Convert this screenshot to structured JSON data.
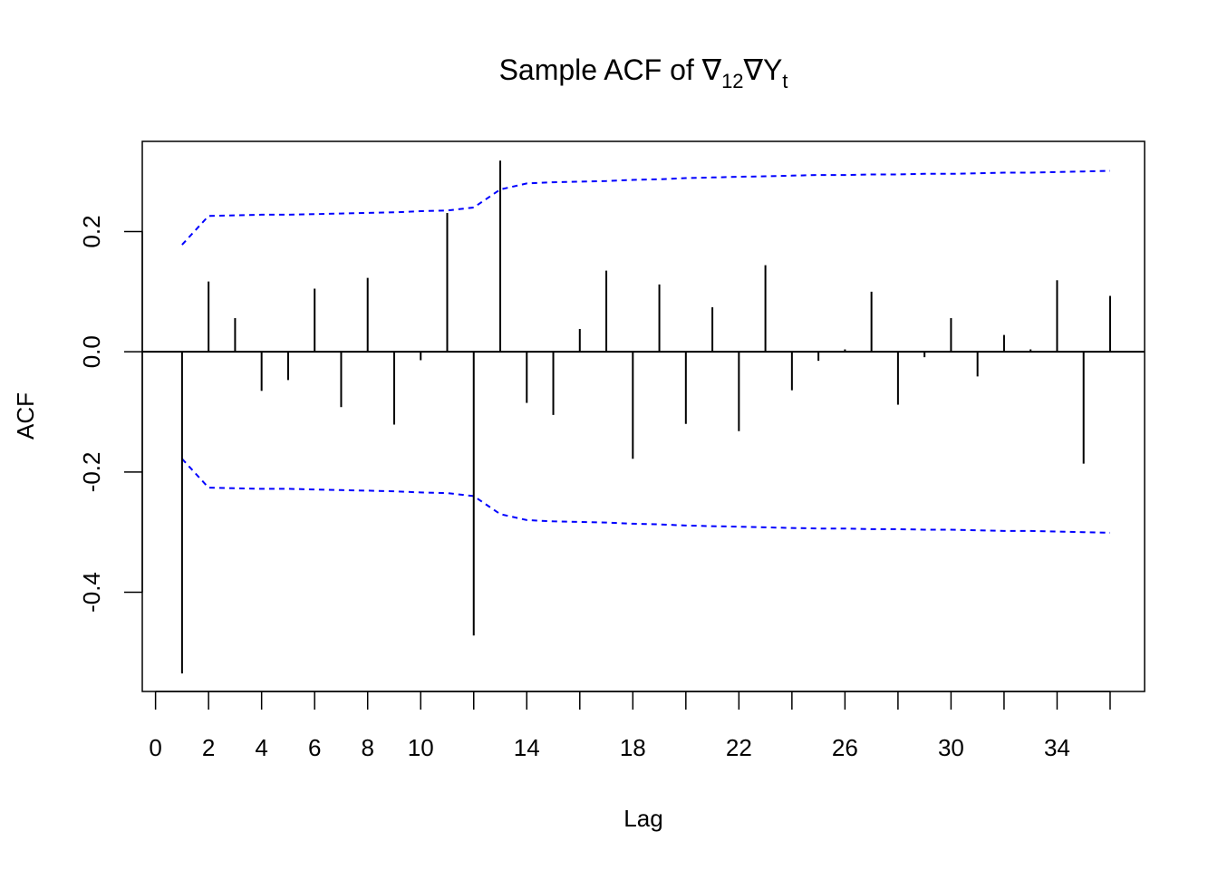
{
  "chart_data": {
    "type": "bar",
    "title": {
      "main": "Sample ACF of ",
      "nabla1": "∇",
      "sub12": "12",
      "nabla2": "∇",
      "var": "Y",
      "subt": "t"
    },
    "xlabel": "Lag",
    "ylabel": "ACF",
    "xlim": [
      -0.5,
      37.3
    ],
    "ylim": [
      -0.565,
      0.35
    ],
    "x_ticks": [
      0,
      2,
      4,
      6,
      8,
      10,
      14,
      18,
      22,
      26,
      30,
      34
    ],
    "x_tick_labels": [
      "0",
      "2",
      "4",
      "6",
      "8",
      "10",
      "14",
      "18",
      "22",
      "26",
      "30",
      "34"
    ],
    "x_tick_marks": [
      0,
      2,
      4,
      6,
      8,
      10,
      12,
      14,
      16,
      18,
      20,
      22,
      24,
      26,
      28,
      30,
      32,
      34,
      36
    ],
    "y_ticks": [
      -0.4,
      -0.2,
      0.0,
      0.2
    ],
    "y_tick_labels": [
      "-0.4",
      "-0.2",
      "0.0",
      "0.2"
    ],
    "lags": [
      1,
      2,
      3,
      4,
      5,
      6,
      7,
      8,
      9,
      10,
      11,
      12,
      13,
      14,
      15,
      16,
      17,
      18,
      19,
      20,
      21,
      22,
      23,
      24,
      25,
      26,
      27,
      28,
      29,
      30,
      31,
      32,
      33,
      34,
      35,
      36
    ],
    "values": [
      -0.535,
      0.117,
      0.056,
      -0.065,
      -0.047,
      0.105,
      -0.092,
      0.123,
      -0.121,
      -0.014,
      0.231,
      -0.472,
      0.318,
      -0.085,
      -0.105,
      0.038,
      0.135,
      -0.178,
      0.112,
      -0.12,
      0.074,
      -0.132,
      0.144,
      -0.064,
      -0.015,
      0.004,
      0.1,
      -0.088,
      -0.009,
      0.056,
      -0.041,
      0.028,
      0.004,
      0.119,
      -0.186,
      0.093
    ],
    "bound_upper": [
      0.178,
      0.226,
      0.227,
      0.228,
      0.228,
      0.229,
      0.23,
      0.231,
      0.232,
      0.234,
      0.235,
      0.24,
      0.27,
      0.28,
      0.282,
      0.283,
      0.284,
      0.286,
      0.287,
      0.289,
      0.29,
      0.291,
      0.292,
      0.293,
      0.294,
      0.294,
      0.295,
      0.295,
      0.296,
      0.296,
      0.297,
      0.298,
      0.298,
      0.299,
      0.3,
      0.301
    ],
    "colors": {
      "acf": "#000000",
      "bounds": "#0000ff",
      "zero_line": "#000000"
    },
    "grid": false
  }
}
